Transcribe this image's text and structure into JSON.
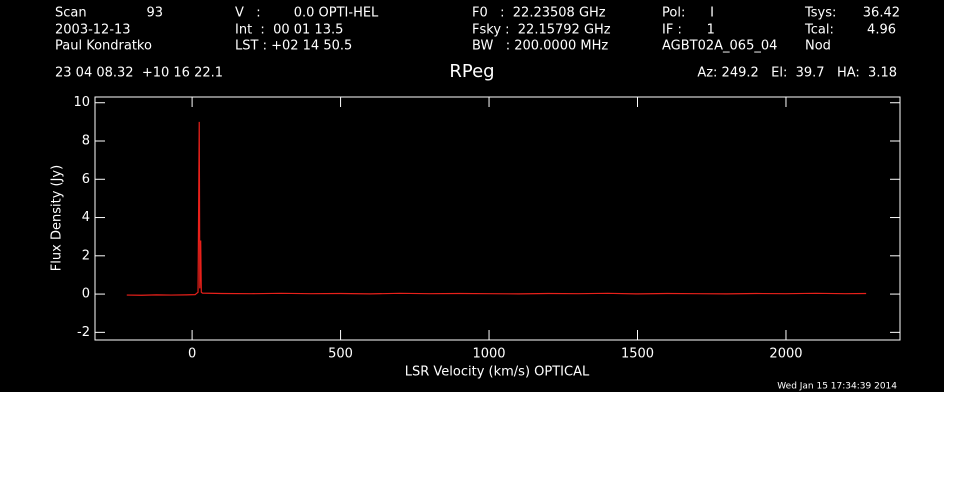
{
  "header": {
    "columns": [
      [
        "Scan",
        "2003-12-13",
        "Paul Kondratko"
      ],
      [
        "V   :        0.0 OPTI-HEL",
        "Int  :  00 01 13.5",
        "LST : +02 14 50.5"
      ],
      [
        "F0   :  22.23508 GHz",
        "Fsky :  22.15792 GHz",
        "BW   : 200.0000 MHz"
      ],
      [
        "Pol:      I",
        "IF :      1",
        "AGBT02A_065_04"
      ],
      [
        "Tsys:",
        "Tcal:",
        "Nod"
      ]
    ],
    "scan_number": "93",
    "tsys": "36.42",
    "tcal": "4.96",
    "coords": "23 04 08.32  +10 16 22.1",
    "pointing": "Az: 249.2   El:  39.7   HA:  3.18",
    "timestamp": "Wed Jan 15 17:34:39 2014"
  },
  "chart_data": {
    "type": "line",
    "title": "RPeg",
    "x_label": "LSR Velocity (km/s) OPTICAL",
    "y_label": "Flux Density (Jy)",
    "color": "#e8201a",
    "x": [
      -220,
      -170,
      -120,
      -70,
      -20,
      10,
      20,
      24,
      26,
      29,
      31,
      35,
      100,
      200,
      300,
      400,
      500,
      600,
      700,
      800,
      900,
      1000,
      1100,
      1200,
      1300,
      1400,
      1500,
      1600,
      1700,
      1800,
      1900,
      2000,
      2100,
      2200,
      2270
    ],
    "values": [
      -0.05,
      -0.06,
      -0.04,
      -0.05,
      -0.04,
      -0.03,
      0.1,
      9.0,
      0.3,
      2.8,
      0.1,
      0.05,
      0.03,
      0.02,
      0.04,
      0.02,
      0.03,
      0.01,
      0.04,
      0.02,
      0.03,
      0.02,
      0.01,
      0.03,
      0.02,
      0.04,
      0.01,
      0.03,
      0.02,
      0.01,
      0.03,
      0.02,
      0.04,
      0.02,
      0.03
    ],
    "xlim": [
      -327,
      2384
    ],
    "ylim": [
      -2.4,
      10.3
    ],
    "xticks": [
      0,
      500,
      1000,
      1500,
      2000
    ],
    "yticks": [
      -2,
      0,
      2,
      4,
      6,
      8,
      10
    ]
  }
}
